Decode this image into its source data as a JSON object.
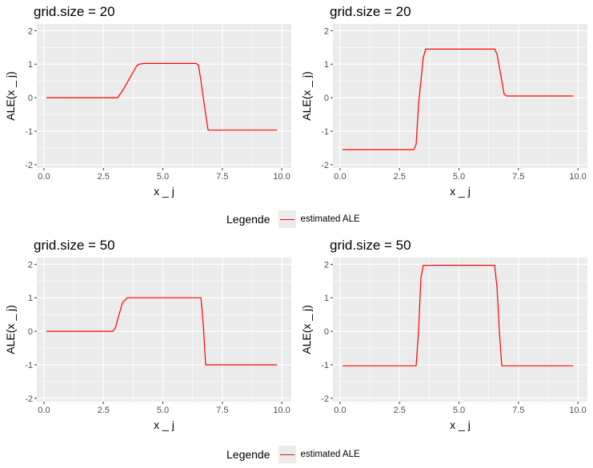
{
  "chart_data": [
    {
      "type": "line",
      "title": "grid.size = 20",
      "xlabel": "x _ j",
      "ylabel": "ALE(x _ j)",
      "xlim": [
        -0.3,
        10.4
      ],
      "ylim": [
        -2.1,
        2.2
      ],
      "xticks": [
        0,
        2.5,
        5,
        7.5,
        10
      ],
      "xtick_labels": [
        "0.0",
        "2.5",
        "5.0",
        "7.5",
        "10.0"
      ],
      "yticks": [
        -2,
        -1,
        0,
        1,
        2
      ],
      "ytick_labels": [
        "-2",
        "-1",
        "0",
        "1",
        "2"
      ],
      "grid": true,
      "series": [
        {
          "name": "estimated ALE",
          "color": "#ff0000",
          "x": [
            0.1,
            3.1,
            3.3,
            3.9,
            4.0,
            4.2,
            6.4,
            6.5,
            6.6,
            6.7,
            6.9,
            9.8
          ],
          "y": [
            0.0,
            0.0,
            0.2,
            0.95,
            1.0,
            1.02,
            1.02,
            0.97,
            0.5,
            0.0,
            -0.97,
            -0.97
          ]
        }
      ]
    },
    {
      "type": "line",
      "title": "grid.size = 20",
      "xlabel": "x _ j",
      "ylabel": "ALE(x _ j)",
      "xlim": [
        -0.3,
        10.4
      ],
      "ylim": [
        -2.1,
        2.2
      ],
      "xticks": [
        0,
        2.5,
        5,
        7.5,
        10
      ],
      "xtick_labels": [
        "0.0",
        "2.5",
        "5.0",
        "7.5",
        "10.0"
      ],
      "yticks": [
        -2,
        -1,
        0,
        1,
        2
      ],
      "ytick_labels": [
        "-2",
        "-1",
        "0",
        "1",
        "2"
      ],
      "grid": true,
      "series": [
        {
          "name": "estimated ALE",
          "color": "#ff0000",
          "x": [
            0.1,
            3.1,
            3.2,
            3.3,
            3.5,
            3.6,
            6.5,
            6.6,
            6.9,
            7.0,
            9.8
          ],
          "y": [
            -1.55,
            -1.55,
            -1.4,
            -0.2,
            1.2,
            1.45,
            1.45,
            1.3,
            0.1,
            0.05,
            0.05
          ]
        }
      ]
    },
    {
      "type": "line",
      "title": "grid.size = 50",
      "xlabel": "x _ j",
      "ylabel": "ALE(x _ j)",
      "xlim": [
        -0.3,
        10.4
      ],
      "ylim": [
        -2.1,
        2.2
      ],
      "xticks": [
        0,
        2.5,
        5,
        7.5,
        10
      ],
      "xtick_labels": [
        "0.0",
        "2.5",
        "5.0",
        "7.5",
        "10.0"
      ],
      "yticks": [
        -2,
        -1,
        0,
        1,
        2
      ],
      "ytick_labels": [
        "-2",
        "-1",
        "0",
        "1",
        "2"
      ],
      "grid": true,
      "series": [
        {
          "name": "estimated ALE",
          "color": "#ff0000",
          "x": [
            0.1,
            2.9,
            3.0,
            3.1,
            3.3,
            3.5,
            6.6,
            6.7,
            6.8,
            9.8
          ],
          "y": [
            0.0,
            0.0,
            0.1,
            0.35,
            0.85,
            1.0,
            1.0,
            0.2,
            -1.0,
            -1.0
          ]
        }
      ]
    },
    {
      "type": "line",
      "title": "grid.size = 50",
      "xlabel": "x _ j",
      "ylabel": "ALE(x _ j)",
      "xlim": [
        -0.3,
        10.4
      ],
      "ylim": [
        -2.1,
        2.2
      ],
      "xticks": [
        0,
        2.5,
        5,
        7.5,
        10
      ],
      "xtick_labels": [
        "0.0",
        "2.5",
        "5.0",
        "7.5",
        "10.0"
      ],
      "yticks": [
        -2,
        -1,
        0,
        1,
        2
      ],
      "ytick_labels": [
        "-2",
        "-1",
        "0",
        "1",
        "2"
      ],
      "grid": true,
      "series": [
        {
          "name": "estimated ALE",
          "color": "#ff0000",
          "x": [
            0.1,
            3.2,
            3.3,
            3.4,
            3.5,
            6.5,
            6.6,
            6.7,
            6.8,
            9.8
          ],
          "y": [
            -1.03,
            -1.03,
            0.0,
            1.6,
            1.97,
            1.97,
            1.3,
            0.0,
            -1.03,
            -1.03
          ]
        }
      ]
    }
  ],
  "legends": [
    {
      "title": "Legende",
      "label": "estimated ALE",
      "color": "#ff0000"
    },
    {
      "title": "Legende",
      "label": "estimated ALE",
      "color": "#ff0000"
    }
  ]
}
